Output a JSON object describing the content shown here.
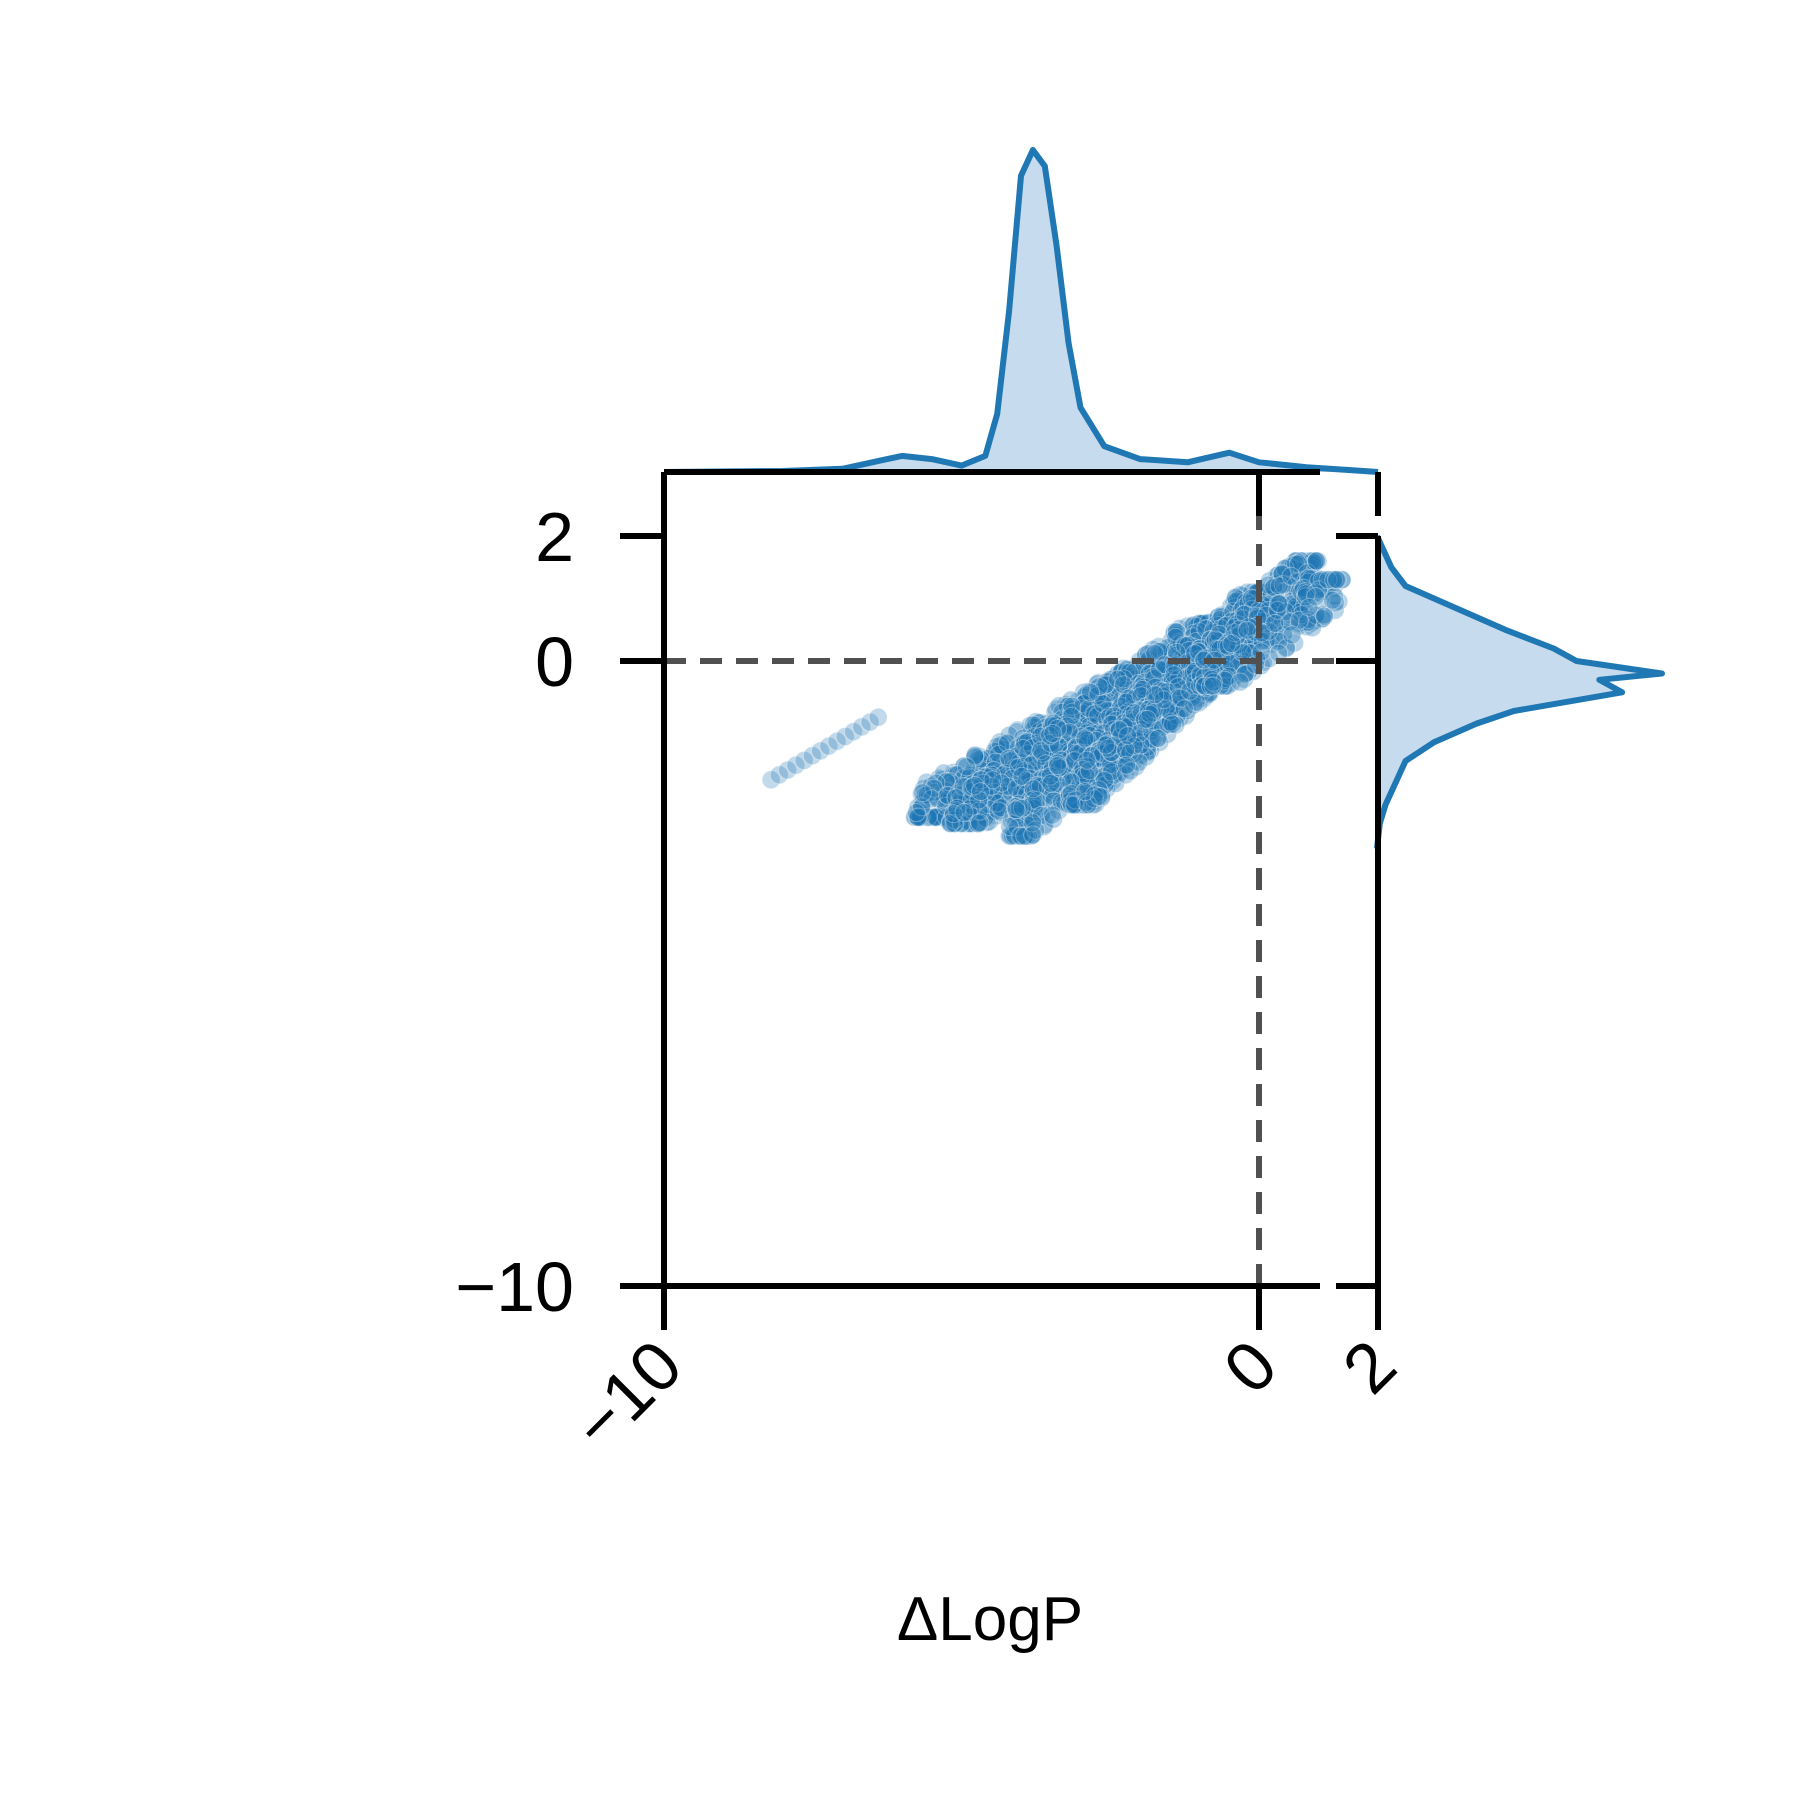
{
  "chart_data": {
    "type": "scatter",
    "title": "",
    "xlabel": "ΔLogP",
    "ylabel": "",
    "xlim": [
      -10,
      2
    ],
    "ylim": [
      -10,
      2
    ],
    "x_ticks": [
      {
        "value": -10,
        "label": "−10"
      },
      {
        "value": 0,
        "label": "0"
      },
      {
        "value": 2,
        "label": "2"
      }
    ],
    "y_ticks": [
      {
        "value": 2,
        "label": "2"
      },
      {
        "value": 0,
        "label": "0"
      },
      {
        "value": -10,
        "label": "−10"
      }
    ],
    "reference_lines": {
      "x": 0,
      "y": 0,
      "style": "dashed"
    },
    "grid": false,
    "legend": "none",
    "colors": {
      "points": "#1f77b4",
      "kde_line": "#1f77b4",
      "kde_fill": "#c6dbed",
      "ref_line": "#505050",
      "axis": "#000000"
    },
    "scatter_bands": [
      {
        "x_range": [
          -5.8,
          -0.9
        ],
        "y_range": [
          -2.5,
          0.2
        ],
        "density": "high"
      },
      {
        "x_range": [
          -5.2,
          -0.6
        ],
        "y_range": [
          -2.6,
          0.6
        ],
        "density": "high"
      },
      {
        "x_range": [
          -4.2,
          0.2
        ],
        "y_range": [
          -2.8,
          1.1
        ],
        "density": "high"
      },
      {
        "x_range": [
          -3.2,
          1.0
        ],
        "y_range": [
          -2.3,
          1.6
        ],
        "density": "high"
      },
      {
        "x_range": [
          -1.0,
          1.4
        ],
        "y_range": [
          -0.4,
          1.3
        ],
        "density": "medium"
      },
      {
        "x_range": [
          -8.2,
          -6.4
        ],
        "y_range": [
          -1.9,
          -0.9
        ],
        "density": "low"
      }
    ],
    "x_marginal_kde": [
      [
        -10,
        0
      ],
      [
        -8,
        0.003
      ],
      [
        -7,
        0.01
      ],
      [
        -6.5,
        0.03
      ],
      [
        -6,
        0.05
      ],
      [
        -5.5,
        0.04
      ],
      [
        -5,
        0.02
      ],
      [
        -4.6,
        0.05
      ],
      [
        -4.4,
        0.18
      ],
      [
        -4.2,
        0.5
      ],
      [
        -4.0,
        0.92
      ],
      [
        -3.8,
        1.0
      ],
      [
        -3.6,
        0.95
      ],
      [
        -3.4,
        0.7
      ],
      [
        -3.2,
        0.4
      ],
      [
        -3.0,
        0.2
      ],
      [
        -2.6,
        0.08
      ],
      [
        -2.0,
        0.04
      ],
      [
        -1.2,
        0.03
      ],
      [
        -0.5,
        0.06
      ],
      [
        0,
        0.03
      ],
      [
        0.8,
        0.015
      ],
      [
        1.6,
        0.005
      ],
      [
        2,
        0
      ]
    ],
    "y_marginal_kde": [
      [
        2,
        0
      ],
      [
        1.5,
        0.05
      ],
      [
        1.2,
        0.1
      ],
      [
        0.8,
        0.3
      ],
      [
        0.5,
        0.45
      ],
      [
        0.2,
        0.62
      ],
      [
        0,
        0.7
      ],
      [
        -0.2,
        1.0
      ],
      [
        -0.3,
        0.78
      ],
      [
        -0.5,
        0.86
      ],
      [
        -0.8,
        0.48
      ],
      [
        -1.0,
        0.35
      ],
      [
        -1.3,
        0.2
      ],
      [
        -1.6,
        0.1
      ],
      [
        -2.0,
        0.06
      ],
      [
        -2.3,
        0.03
      ],
      [
        -2.6,
        0.01
      ],
      [
        -3.0,
        0
      ]
    ]
  }
}
